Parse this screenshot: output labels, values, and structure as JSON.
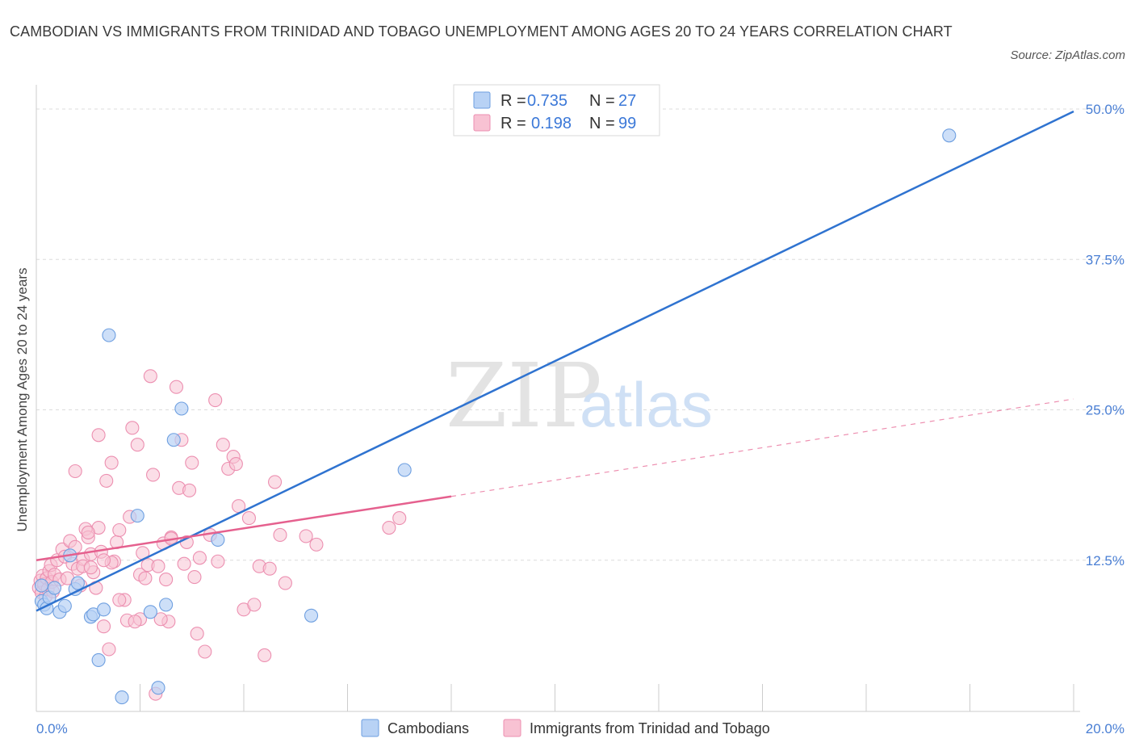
{
  "title": "CAMBODIAN VS IMMIGRANTS FROM TRINIDAD AND TOBAGO UNEMPLOYMENT AMONG AGES 20 TO 24 YEARS CORRELATION CHART",
  "source": "Source: ZipAtlas.com",
  "watermark": {
    "zip": "ZIP",
    "atlas": "atlas"
  },
  "colors": {
    "cambodian_fill": "#b8d2f5",
    "cambodian_stroke": "#6e9fe0",
    "cambodian_line": "#2f73d0",
    "trinidad_fill": "#f8c2d3",
    "trinidad_stroke": "#ec8fb0",
    "trinidad_line": "#e5608e",
    "grid": "#dcdcdc",
    "tick_text": "#4a7fd4"
  },
  "legend_top": [
    {
      "r_label": "R =",
      "r_value": "0.735",
      "n_label": "N =",
      "n_value": "27"
    },
    {
      "r_label": "R =",
      "r_value": "0.198",
      "n_label": "N =",
      "n_value": "99"
    }
  ],
  "chart_data": {
    "type": "scatter",
    "xlabel": "",
    "ylabel": "Unemployment Among Ages 20 to 24 years",
    "xlim": [
      0,
      20
    ],
    "ylim": [
      0,
      50
    ],
    "x_tick_labels": [
      "0.0%",
      "20.0%"
    ],
    "y_ticks": [
      12.5,
      25.0,
      37.5,
      50.0
    ],
    "y_tick_labels": [
      "12.5%",
      "25.0%",
      "37.5%",
      "50.0%"
    ],
    "grid": true,
    "legend_position": "bottom",
    "series": [
      {
        "name": "Cambodians",
        "R": 0.735,
        "N": 27,
        "trend": {
          "x": [
            0,
            20
          ],
          "y": [
            8.3,
            49.8
          ],
          "dashed_from": null
        },
        "points": [
          [
            0.1,
            10.4
          ],
          [
            0.1,
            9.1
          ],
          [
            0.15,
            8.8
          ],
          [
            0.2,
            8.5
          ],
          [
            0.25,
            9.4
          ],
          [
            0.35,
            10.2
          ],
          [
            0.45,
            8.2
          ],
          [
            0.55,
            8.7
          ],
          [
            0.65,
            12.9
          ],
          [
            0.75,
            10.1
          ],
          [
            0.8,
            10.6
          ],
          [
            1.05,
            7.8
          ],
          [
            1.1,
            8.0
          ],
          [
            1.3,
            8.4
          ],
          [
            1.2,
            4.2
          ],
          [
            1.4,
            31.2
          ],
          [
            1.65,
            1.1
          ],
          [
            1.95,
            16.2
          ],
          [
            2.2,
            8.2
          ],
          [
            2.35,
            1.9
          ],
          [
            2.5,
            8.8
          ],
          [
            2.65,
            22.5
          ],
          [
            2.8,
            25.1
          ],
          [
            3.5,
            14.2
          ],
          [
            7.1,
            20.0
          ],
          [
            5.3,
            7.9
          ],
          [
            17.6,
            47.8
          ]
        ]
      },
      {
        "name": "Immigrants from Trinidad and Tobago",
        "R": 0.198,
        "N": 99,
        "trend": {
          "x": [
            0,
            8.0
          ],
          "y": [
            12.5,
            17.8
          ],
          "dashed_to": [
            20,
            25.9
          ]
        },
        "points": [
          [
            0.05,
            10.2
          ],
          [
            0.08,
            10.8
          ],
          [
            0.1,
            9.8
          ],
          [
            0.12,
            11.2
          ],
          [
            0.15,
            10.5
          ],
          [
            0.18,
            9.5
          ],
          [
            0.2,
            11.0
          ],
          [
            0.22,
            10.1
          ],
          [
            0.25,
            11.6
          ],
          [
            0.28,
            12.1
          ],
          [
            0.3,
            10.7
          ],
          [
            0.32,
            9.9
          ],
          [
            0.35,
            11.3
          ],
          [
            0.4,
            12.5
          ],
          [
            0.45,
            10.9
          ],
          [
            0.5,
            13.4
          ],
          [
            0.55,
            12.8
          ],
          [
            0.6,
            11.0
          ],
          [
            0.65,
            14.1
          ],
          [
            0.7,
            12.2
          ],
          [
            0.75,
            13.6
          ],
          [
            0.8,
            11.8
          ],
          [
            0.85,
            10.4
          ],
          [
            0.9,
            12.6
          ],
          [
            0.95,
            15.1
          ],
          [
            1.0,
            14.4
          ],
          [
            1.05,
            13.0
          ],
          [
            1.1,
            11.5
          ],
          [
            1.15,
            10.2
          ],
          [
            1.2,
            15.2
          ],
          [
            0.75,
            19.9
          ],
          [
            1.2,
            22.9
          ],
          [
            1.35,
            19.1
          ],
          [
            1.45,
            20.6
          ],
          [
            1.5,
            12.4
          ],
          [
            1.55,
            14.0
          ],
          [
            1.6,
            15.0
          ],
          [
            1.7,
            9.2
          ],
          [
            1.75,
            7.5
          ],
          [
            1.8,
            16.1
          ],
          [
            1.85,
            23.5
          ],
          [
            1.95,
            22.1
          ],
          [
            2.0,
            11.3
          ],
          [
            2.05,
            13.1
          ],
          [
            2.1,
            11.0
          ],
          [
            2.15,
            12.1
          ],
          [
            2.2,
            27.8
          ],
          [
            2.25,
            19.6
          ],
          [
            2.35,
            12.0
          ],
          [
            2.45,
            13.9
          ],
          [
            2.5,
            10.9
          ],
          [
            2.55,
            7.4
          ],
          [
            2.6,
            14.4
          ],
          [
            2.7,
            26.9
          ],
          [
            2.75,
            18.5
          ],
          [
            2.8,
            22.5
          ],
          [
            2.85,
            12.2
          ],
          [
            2.9,
            14.0
          ],
          [
            2.95,
            18.3
          ],
          [
            3.0,
            20.6
          ],
          [
            3.05,
            11.1
          ],
          [
            3.1,
            6.4
          ],
          [
            3.15,
            12.7
          ],
          [
            3.25,
            4.9
          ],
          [
            3.35,
            14.6
          ],
          [
            3.45,
            25.8
          ],
          [
            3.5,
            12.4
          ],
          [
            3.6,
            22.1
          ],
          [
            3.7,
            20.1
          ],
          [
            3.8,
            21.1
          ],
          [
            3.85,
            20.5
          ],
          [
            3.9,
            17.0
          ],
          [
            4.0,
            8.4
          ],
          [
            4.1,
            16.0
          ],
          [
            4.2,
            8.8
          ],
          [
            4.3,
            12.0
          ],
          [
            4.4,
            4.6
          ],
          [
            4.5,
            11.8
          ],
          [
            4.6,
            19.0
          ],
          [
            4.7,
            14.6
          ],
          [
            4.8,
            10.6
          ],
          [
            5.2,
            14.5
          ],
          [
            5.4,
            13.8
          ],
          [
            6.8,
            15.2
          ],
          [
            7.0,
            16.0
          ],
          [
            2.3,
            1.4
          ],
          [
            2.4,
            7.6
          ],
          [
            1.3,
            7.0
          ],
          [
            1.4,
            5.1
          ],
          [
            1.6,
            9.2
          ],
          [
            2.0,
            7.6
          ],
          [
            1.9,
            7.4
          ],
          [
            0.9,
            12.0
          ],
          [
            1.0,
            14.8
          ],
          [
            1.25,
            13.2
          ],
          [
            1.45,
            12.3
          ],
          [
            2.6,
            14.3
          ],
          [
            1.05,
            11.9
          ],
          [
            1.3,
            12.5
          ]
        ]
      }
    ]
  },
  "legend_bottom": [
    {
      "label": "Cambodians"
    },
    {
      "label": "Immigrants from Trinidad and Tobago"
    }
  ]
}
